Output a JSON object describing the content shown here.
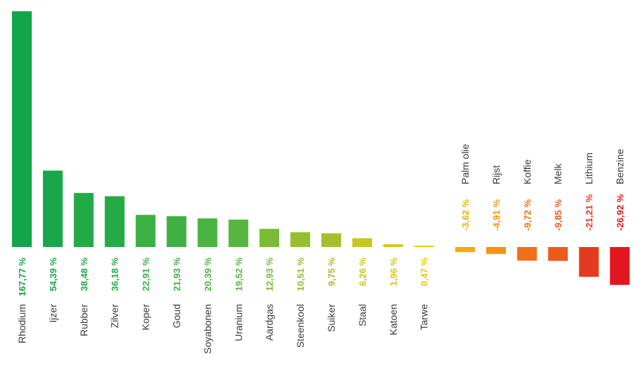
{
  "chart_data": {
    "type": "bar",
    "categories": [
      "Rhodium",
      "Ijzer",
      "Rubber",
      "Zilver",
      "Koper",
      "Goud",
      "Soyabonen",
      "Uranium",
      "Aardgas",
      "Steenkool",
      "Suiker",
      "Staal",
      "Katoen",
      "Tarwe",
      "Palm olie",
      "Rijst",
      "Koffie",
      "Melk",
      "Lithium",
      "Benzine"
    ],
    "values": [
      167.77,
      54.39,
      38.48,
      36.18,
      22.91,
      21.93,
      20.39,
      19.52,
      12.93,
      10.51,
      9.75,
      6.26,
      1.96,
      0.47,
      -3.62,
      -4.91,
      -9.72,
      -9.85,
      -21.21,
      -26.92
    ],
    "value_labels": [
      "167,77 %",
      "54,39 %",
      "38,48 %",
      "36,18 %",
      "22,91 %",
      "21,93 %",
      "20,39 %",
      "19,52 %",
      "12,93 %",
      "10,51 %",
      "9,75 %",
      "6,26 %",
      "1,96 %",
      "0,47 %",
      "-3,62 %",
      "-4,91 %",
      "-9,72 %",
      "-9,85 %",
      "-21,21 %",
      "-26,92 %"
    ],
    "colors": [
      "#12a54a",
      "#17a84a",
      "#22aa47",
      "#25ab46",
      "#3cb043",
      "#3fb143",
      "#4bb441",
      "#58b63e",
      "#79bb36",
      "#95c02e",
      "#a4c12b",
      "#c9c61a",
      "#d6c515",
      "#f0c20a",
      "#f2ab0e",
      "#f39512",
      "#ef6f1a",
      "#ec5b1c",
      "#e63a20",
      "#e2161e"
    ],
    "title": "",
    "xlabel": "",
    "ylabel": "",
    "ylim": [
      -26.92,
      167.77
    ],
    "grid": false,
    "legend": "none"
  }
}
